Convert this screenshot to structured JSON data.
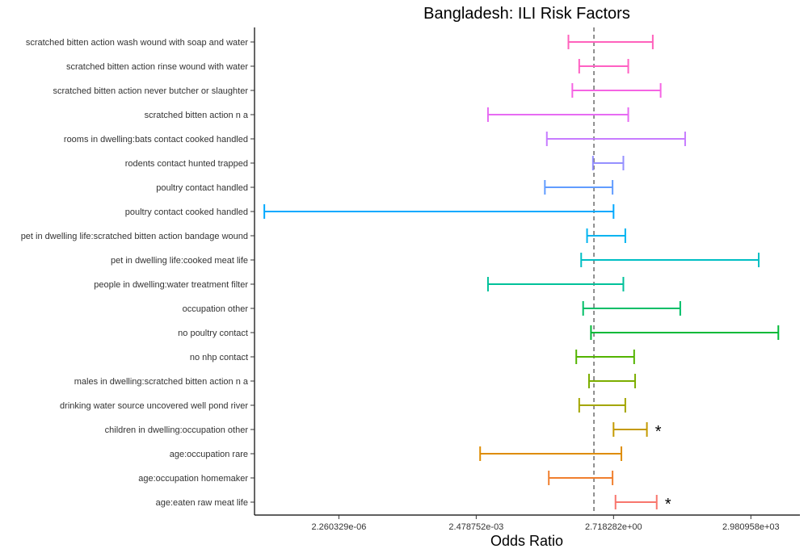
{
  "chart_data": {
    "type": "errorbar",
    "title": "Bangladesh: ILI Risk Factors",
    "xlabel": "Odds Ratio",
    "ylabel": "",
    "x_scale": "log",
    "x_tick_values_ln": [
      -13,
      -6,
      1,
      8
    ],
    "x_tick_labels": [
      "2.260329e-06",
      "2.478752e-03",
      "2.718282e+00",
      "2.980958e+03"
    ],
    "x_range_ln": [
      -17.3,
      10.5
    ],
    "reference_line_x": 1,
    "grid": false,
    "legend": "none",
    "categories": [
      "scratched bitten action wash wound with soap and water",
      "scratched bitten action rinse wound with water",
      "scratched bitten action never butcher or slaughter",
      "scratched bitten action n a",
      "rooms in dwelling:bats contact cooked handled",
      "rodents contact hunted trapped",
      "poultry contact handled",
      "poultry contact cooked handled",
      "pet in dwelling life:scratched bitten action bandage wound",
      "pet in dwelling life:cooked meat life",
      "people in dwelling:water treatment filter",
      "occupation other",
      "no poultry contact",
      "no nhp contact",
      "males in dwelling:scratched bitten action n a",
      "drinking water source uncovered well pond river",
      "children in dwelling:occupation other",
      "age:occupation rare",
      "age:occupation homemaker",
      "age:eaten raw meat life"
    ],
    "intervals_ln": [
      {
        "lower": -1.3,
        "upper": 3.0,
        "color": "#FF62BC",
        "mark": ""
      },
      {
        "lower": -0.75,
        "upper": 1.75,
        "color": "#FF61C3",
        "mark": ""
      },
      {
        "lower": -1.1,
        "upper": 3.4,
        "color": "#F564E3",
        "mark": ""
      },
      {
        "lower": -5.4,
        "upper": 1.75,
        "color": "#E76BF3",
        "mark": ""
      },
      {
        "lower": -2.4,
        "upper": 4.65,
        "color": "#C77CFF",
        "mark": ""
      },
      {
        "lower": -0.05,
        "upper": 1.5,
        "color": "#9590FF",
        "mark": ""
      },
      {
        "lower": -2.5,
        "upper": 0.95,
        "color": "#619CFF",
        "mark": ""
      },
      {
        "lower": -16.8,
        "upper": 1.0,
        "color": "#00A9FF",
        "mark": ""
      },
      {
        "lower": -0.35,
        "upper": 1.6,
        "color": "#00B4F0",
        "mark": ""
      },
      {
        "lower": -0.65,
        "upper": 8.4,
        "color": "#00BFC4",
        "mark": ""
      },
      {
        "lower": -5.4,
        "upper": 1.5,
        "color": "#00C19A",
        "mark": ""
      },
      {
        "lower": -0.55,
        "upper": 4.4,
        "color": "#00BE67",
        "mark": ""
      },
      {
        "lower": -0.15,
        "upper": 9.4,
        "color": "#00BA38",
        "mark": ""
      },
      {
        "lower": -0.9,
        "upper": 2.05,
        "color": "#53B400",
        "mark": ""
      },
      {
        "lower": -0.25,
        "upper": 2.1,
        "color": "#7CAE00",
        "mark": ""
      },
      {
        "lower": -0.75,
        "upper": 1.6,
        "color": "#A3A500",
        "mark": ""
      },
      {
        "lower": 1.0,
        "upper": 2.7,
        "color": "#C49A00",
        "mark": "*"
      },
      {
        "lower": -5.8,
        "upper": 1.4,
        "color": "#DE8C00",
        "mark": ""
      },
      {
        "lower": -2.3,
        "upper": 0.95,
        "color": "#F07F2E",
        "mark": ""
      },
      {
        "lower": 1.1,
        "upper": 3.2,
        "color": "#F8766D",
        "mark": "*"
      }
    ]
  }
}
